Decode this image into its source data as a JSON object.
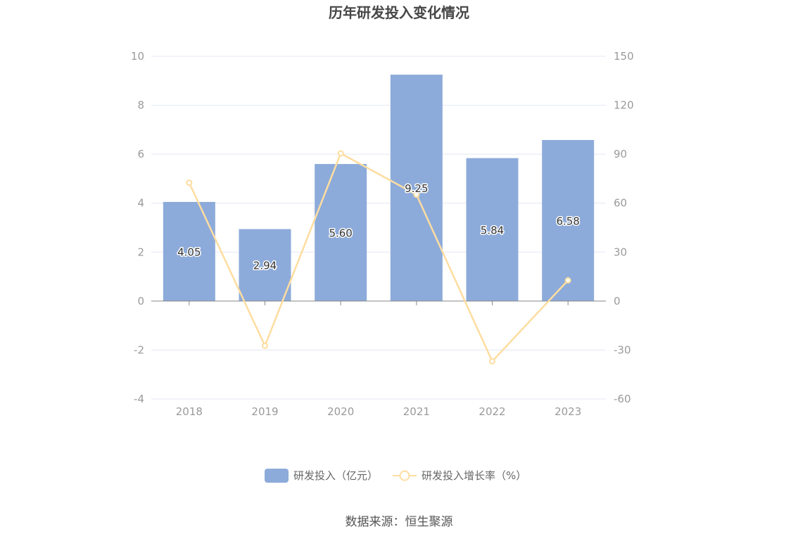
{
  "chart_data": {
    "type": "bar",
    "title": "历年研发投入变化情况",
    "categories": [
      "2018",
      "2019",
      "2020",
      "2021",
      "2022",
      "2023"
    ],
    "series": [
      {
        "name": "研发投入（亿元）",
        "type": "bar",
        "axis": "left",
        "values": [
          4.05,
          2.94,
          5.6,
          9.25,
          5.84,
          6.58
        ],
        "labels": [
          "4.05",
          "2.94",
          "5.60",
          "9.25",
          "5.84",
          "6.58"
        ]
      },
      {
        "name": "研发投入增长率（%）",
        "type": "line",
        "axis": "right",
        "values": [
          72.5,
          -27.4,
          90.5,
          65.2,
          -36.9,
          12.7
        ]
      }
    ],
    "y_left": {
      "min": -4,
      "max": 10,
      "ticks": [
        "-4",
        "-2",
        "0",
        "2",
        "4",
        "6",
        "8",
        "10"
      ]
    },
    "y_right": {
      "min": -60,
      "max": 150,
      "ticks": [
        "-60",
        "-30",
        "0",
        "30",
        "60",
        "90",
        "120",
        "150"
      ]
    },
    "grid": true,
    "legend_position": "bottom",
    "colors": {
      "bar": "#8DABDA",
      "line": "#FDDDA0",
      "grid": "#E3E7F3",
      "axis": "#888888"
    }
  },
  "source": "数据来源：恒生聚源"
}
